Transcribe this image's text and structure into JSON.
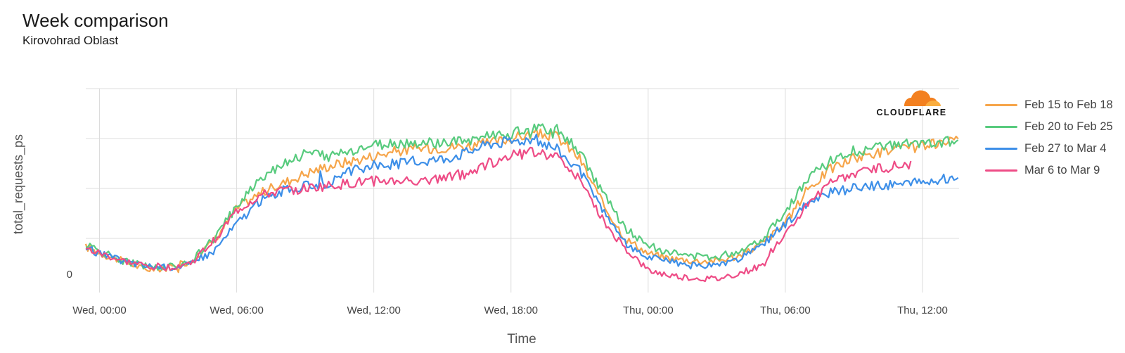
{
  "header": {
    "title": "Week comparison",
    "subtitle": "Kirovohrad Oblast"
  },
  "logo": {
    "name": "cloudflare-logo",
    "text": "CLOUDFLARE",
    "color": "#f38020"
  },
  "chart_data": {
    "type": "line",
    "title": "Week comparison",
    "subtitle": "Kirovohrad Oblast",
    "xlabel": "Time",
    "ylabel": "total_requests_ps",
    "x_ticks": [
      "Wed, 00:00",
      "Wed, 06:00",
      "Wed, 12:00",
      "Wed, 18:00",
      "Thu, 00:00",
      "Thu, 06:00",
      "Thu, 12:00"
    ],
    "y_tick_labels": [
      "0"
    ],
    "x_range_hours": [
      -0.6,
      37.6
    ],
    "ylim": [
      0,
      4
    ],
    "grid": true,
    "legend_position": "right",
    "series": [
      {
        "name": "Feb 15 to Feb 18",
        "color": "#f6a54a",
        "points": [
          [
            -0.6,
            0.83
          ],
          [
            0,
            0.7
          ],
          [
            1,
            0.55
          ],
          [
            2,
            0.38
          ],
          [
            3,
            0.4
          ],
          [
            4,
            0.55
          ],
          [
            5,
            0.95
          ],
          [
            6,
            1.6
          ],
          [
            7,
            1.9
          ],
          [
            8,
            2.1
          ],
          [
            9,
            2.3
          ],
          [
            10,
            2.45
          ],
          [
            11,
            2.55
          ],
          [
            12,
            2.65
          ],
          [
            13,
            2.75
          ],
          [
            14,
            2.8
          ],
          [
            15,
            2.82
          ],
          [
            16,
            2.85
          ],
          [
            17,
            2.9
          ],
          [
            18,
            3.0
          ],
          [
            19,
            3.1
          ],
          [
            20,
            3.05
          ],
          [
            21,
            2.6
          ],
          [
            22,
            1.7
          ],
          [
            23,
            1.0
          ],
          [
            24,
            0.7
          ],
          [
            25,
            0.6
          ],
          [
            26,
            0.55
          ],
          [
            27,
            0.55
          ],
          [
            28,
            0.65
          ],
          [
            29,
            0.9
          ],
          [
            30,
            1.3
          ],
          [
            31,
            2.0
          ],
          [
            32,
            2.4
          ],
          [
            33,
            2.6
          ],
          [
            34,
            2.72
          ],
          [
            35,
            2.78
          ],
          [
            36,
            2.85
          ],
          [
            37,
            2.9
          ],
          [
            37.6,
            2.95
          ]
        ]
      },
      {
        "name": "Feb 20 to Feb 25",
        "color": "#58cb7e",
        "points": [
          [
            -0.6,
            0.88
          ],
          [
            0,
            0.75
          ],
          [
            1,
            0.55
          ],
          [
            2,
            0.45
          ],
          [
            3,
            0.42
          ],
          [
            4,
            0.55
          ],
          [
            5,
            0.98
          ],
          [
            6,
            1.65
          ],
          [
            7,
            2.2
          ],
          [
            8,
            2.5
          ],
          [
            9,
            2.7
          ],
          [
            10,
            2.65
          ],
          [
            11,
            2.75
          ],
          [
            12,
            2.85
          ],
          [
            13,
            2.9
          ],
          [
            14,
            2.9
          ],
          [
            15,
            2.9
          ],
          [
            16,
            2.95
          ],
          [
            17,
            3.05
          ],
          [
            18,
            3.1
          ],
          [
            19,
            3.2
          ],
          [
            20,
            3.2
          ],
          [
            21,
            2.75
          ],
          [
            22,
            1.9
          ],
          [
            23,
            1.2
          ],
          [
            24,
            0.85
          ],
          [
            25,
            0.72
          ],
          [
            26,
            0.63
          ],
          [
            27,
            0.63
          ],
          [
            28,
            0.75
          ],
          [
            29,
            1.0
          ],
          [
            30,
            1.55
          ],
          [
            31,
            2.2
          ],
          [
            32,
            2.55
          ],
          [
            33,
            2.75
          ],
          [
            34,
            2.8
          ],
          [
            35,
            2.88
          ],
          [
            36,
            2.9
          ],
          [
            37,
            2.92
          ],
          [
            37.6,
            3.0
          ]
        ]
      },
      {
        "name": "Feb 27 to Mar 4",
        "color": "#3d8fe8",
        "points": [
          [
            -0.6,
            0.8
          ],
          [
            0,
            0.7
          ],
          [
            1,
            0.55
          ],
          [
            2,
            0.45
          ],
          [
            3,
            0.42
          ],
          [
            4,
            0.48
          ],
          [
            5,
            0.75
          ],
          [
            6,
            1.3
          ],
          [
            7,
            1.75
          ],
          [
            8,
            1.95
          ],
          [
            9,
            2.05
          ],
          [
            10,
            2.1
          ],
          [
            11,
            2.35
          ],
          [
            12,
            2.45
          ],
          [
            13,
            2.5
          ],
          [
            14,
            2.55
          ],
          [
            15,
            2.6
          ],
          [
            16,
            2.72
          ],
          [
            17,
            2.9
          ],
          [
            18,
            2.95
          ],
          [
            19,
            3.0
          ],
          [
            20,
            2.8
          ],
          [
            21,
            2.35
          ],
          [
            22,
            1.55
          ],
          [
            23,
            0.9
          ],
          [
            24,
            0.62
          ],
          [
            25,
            0.52
          ],
          [
            26,
            0.45
          ],
          [
            27,
            0.45
          ],
          [
            28,
            0.58
          ],
          [
            29,
            0.85
          ],
          [
            30,
            1.3
          ],
          [
            31,
            1.7
          ],
          [
            32,
            1.92
          ],
          [
            33,
            2.0
          ],
          [
            34,
            2.05
          ],
          [
            35,
            2.1
          ],
          [
            36,
            2.12
          ],
          [
            37,
            2.2
          ],
          [
            37.6,
            2.25
          ]
        ]
      },
      {
        "name": "Mar 6 to Mar 9",
        "color": "#ee4c86",
        "points": [
          [
            -0.6,
            0.78
          ],
          [
            0,
            0.7
          ],
          [
            1,
            0.55
          ],
          [
            2,
            0.45
          ],
          [
            3,
            0.42
          ],
          [
            4,
            0.5
          ],
          [
            5,
            0.95
          ],
          [
            6,
            1.55
          ],
          [
            7,
            1.85
          ],
          [
            8,
            1.95
          ],
          [
            9,
            2.0
          ],
          [
            10,
            2.05
          ],
          [
            11,
            2.1
          ],
          [
            12,
            2.15
          ],
          [
            13,
            2.15
          ],
          [
            14,
            2.18
          ],
          [
            15,
            2.2
          ],
          [
            16,
            2.3
          ],
          [
            17,
            2.5
          ],
          [
            18,
            2.65
          ],
          [
            19,
            2.75
          ],
          [
            20,
            2.65
          ],
          [
            21,
            2.2
          ],
          [
            22,
            1.35
          ],
          [
            23,
            0.8
          ],
          [
            24,
            0.35
          ],
          [
            25,
            0.25
          ],
          [
            26,
            0.2
          ],
          [
            27,
            0.18
          ],
          [
            28,
            0.3
          ],
          [
            29,
            0.45
          ],
          [
            30,
            1.1
          ],
          [
            31,
            1.7
          ],
          [
            32,
            2.1
          ],
          [
            33,
            2.3
          ],
          [
            34,
            2.4
          ],
          [
            35,
            2.45
          ],
          [
            35.5,
            2.5
          ]
        ]
      }
    ]
  }
}
